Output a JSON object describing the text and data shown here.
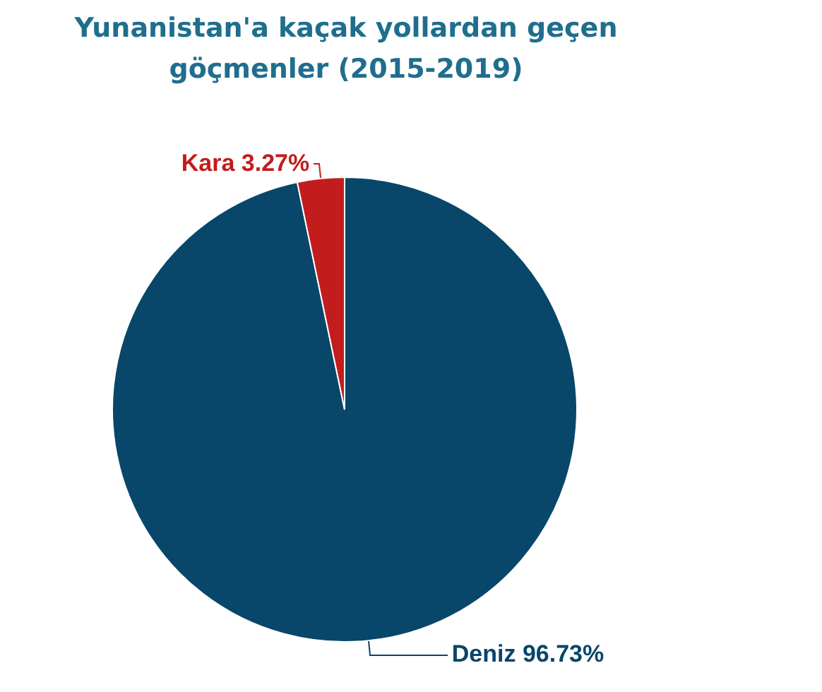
{
  "chart_data": {
    "type": "pie",
    "title": "Yunanistan'a kaçak yollardan geçen göçmenler (2015-2019)",
    "categories": [
      "Deniz",
      "Kara"
    ],
    "values": [
      96.73,
      3.27
    ],
    "value_labels": [
      "96.73%",
      "3.27%"
    ],
    "colors": [
      "#08466a",
      "#c31c1c"
    ]
  }
}
